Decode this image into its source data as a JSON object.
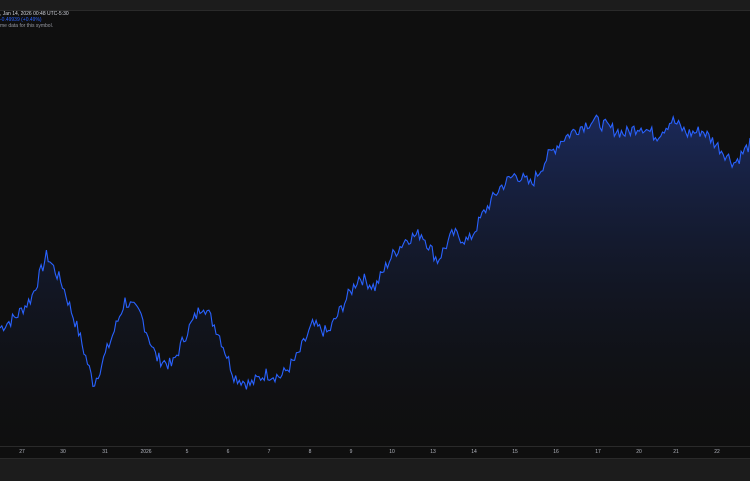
{
  "legend": {
    "line1": ", Jan 14, 2026 00:48 UTC-5:30",
    "line2": "-0.49939 (+0.49%)",
    "line3": "me data for this symbol."
  },
  "colors": {
    "background": "#0f0f0f",
    "line": "#2962ff",
    "area_top": "#1b2a5c",
    "axis_text": "#b2b5be"
  },
  "chart_data": {
    "type": "area",
    "x_ticks": [
      "27",
      "30",
      "31",
      "2026",
      "5",
      "6",
      "7",
      "8",
      "9",
      "10",
      "13",
      "14",
      "15",
      "16",
      "17",
      "20",
      "21",
      "22"
    ],
    "y_relative": [
      0.23,
      0.27,
      0.34,
      0.5,
      0.39,
      0.22,
      0.02,
      0.17,
      0.33,
      0.28,
      0.12,
      0.09,
      0.22,
      0.32,
      0.21,
      0.05,
      0.02,
      0.06,
      0.05,
      0.12,
      0.24,
      0.21,
      0.32,
      0.42,
      0.38,
      0.49,
      0.56,
      0.58,
      0.48,
      0.58,
      0.55,
      0.66,
      0.75,
      0.8,
      0.76,
      0.86,
      0.93,
      0.97,
      1.0,
      0.97,
      0.95,
      0.98,
      0.94,
      1.0,
      0.95,
      0.96,
      0.9,
      0.84,
      0.91
    ]
  }
}
